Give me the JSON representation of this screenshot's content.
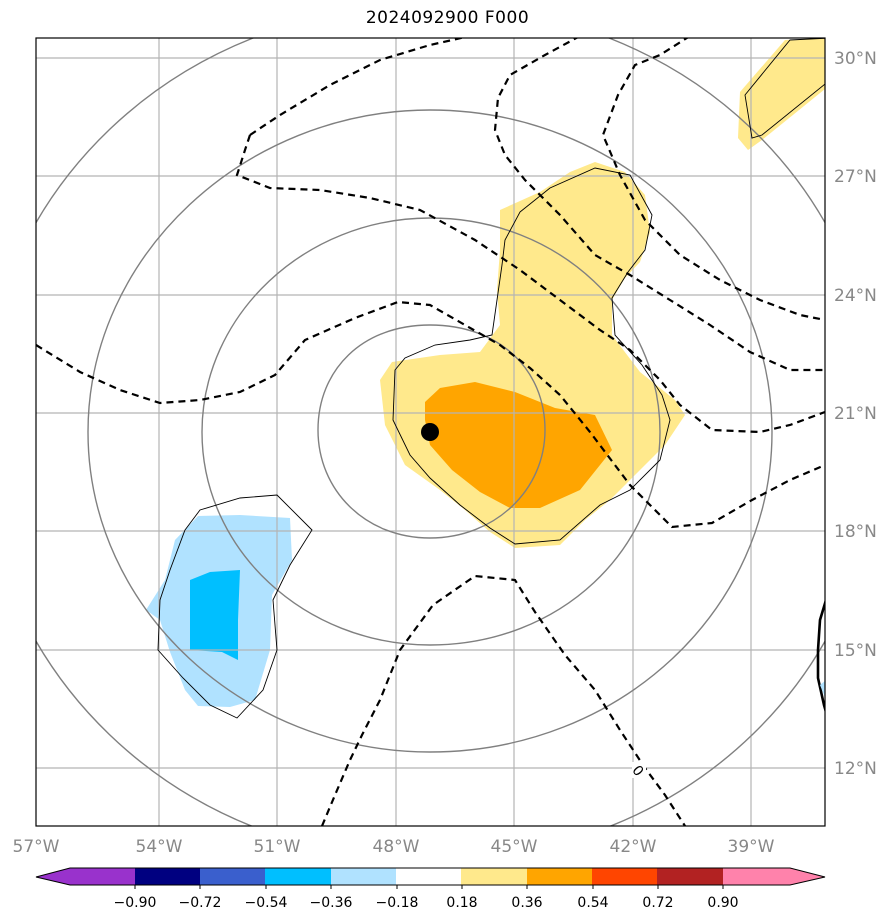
{
  "title": "2024092900 F000",
  "lon_labels": [
    "57°W",
    "54°W",
    "51°W",
    "48°W",
    "45°W",
    "42°W",
    "39°W"
  ],
  "lat_labels": [
    "30°N",
    "27°N",
    "24°N",
    "21°N",
    "18°N",
    "15°N",
    "12°N"
  ],
  "contour_label": "0",
  "colorbar": {
    "ticks": [
      "−0.90",
      "−0.72",
      "−0.54",
      "−0.36",
      "−0.18",
      "0.18",
      "0.36",
      "0.54",
      "0.72",
      "0.90"
    ],
    "colors": [
      "#9932cc",
      "#000080",
      "#3a5fcd",
      "#00bfff",
      "#b0e2ff",
      "#ffffff",
      "#ffe98c",
      "#ffa500",
      "#ff4500",
      "#b22222",
      "#ff82ab"
    ]
  },
  "storm_center": {
    "lon": -47.1,
    "lat": 20.5
  }
}
